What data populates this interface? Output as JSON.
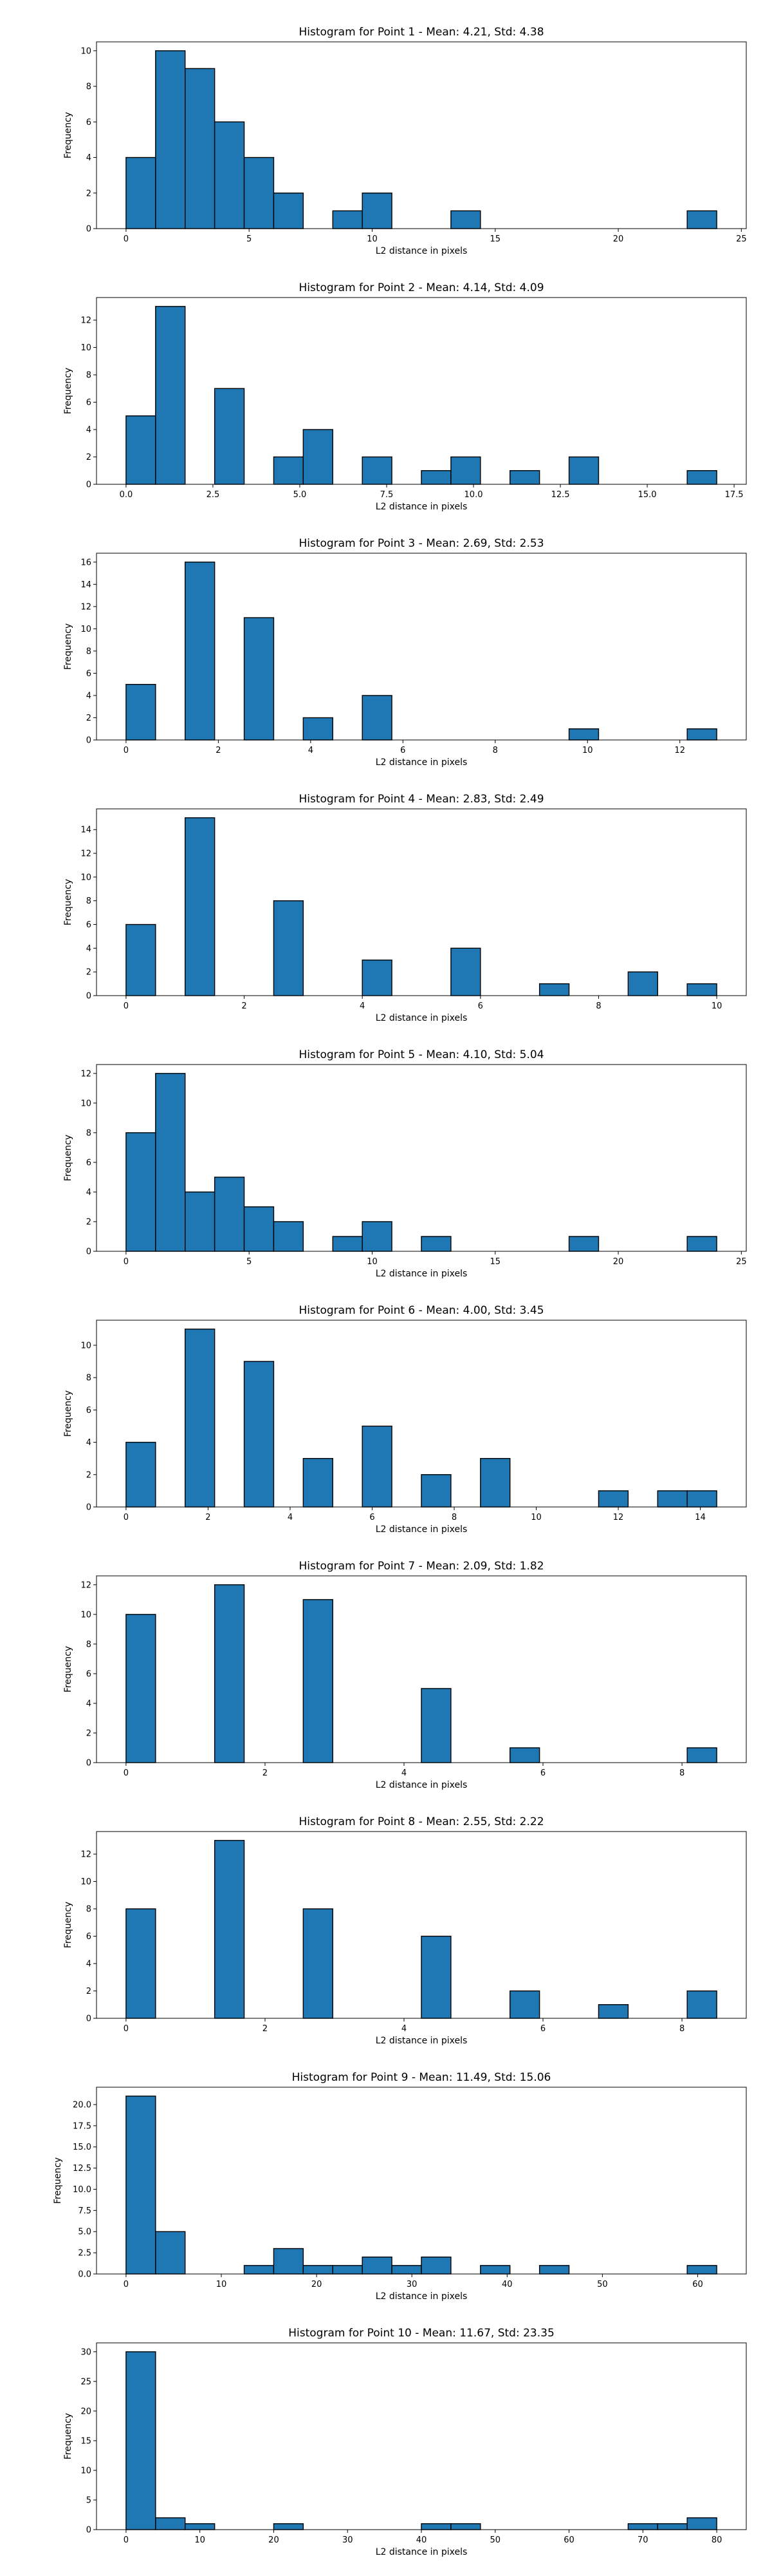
{
  "chart_data": [
    {
      "type": "bar",
      "title": "Histogram for Point 1 - Mean: 4.21, Std: 4.38",
      "xlabel": "L2 distance in pixels",
      "ylabel": "Frequency",
      "xlim": [
        -1.2,
        25.2
      ],
      "ylim": [
        0,
        10.5
      ],
      "xticks": [
        0,
        5,
        10,
        15,
        20,
        25
      ],
      "xtick_labels": [
        "0",
        "5",
        "10",
        "15",
        "20",
        "25"
      ],
      "yticks": [
        0,
        2,
        4,
        6,
        8,
        10
      ],
      "ytick_labels": [
        "0",
        "2",
        "4",
        "6",
        "8",
        "10"
      ],
      "bin_edges": [
        0,
        1.2,
        2.4,
        3.6,
        4.8,
        6,
        7.2,
        8.4,
        9.6,
        10.8,
        12,
        13.2,
        14.4,
        15.6,
        16.8,
        18,
        19.2,
        20.4,
        21.6,
        22.8,
        24
      ],
      "values": [
        4,
        10,
        9,
        6,
        4,
        2,
        0,
        1,
        2,
        0,
        0,
        1,
        0,
        0,
        0,
        0,
        0,
        0,
        0,
        1
      ]
    },
    {
      "type": "bar",
      "title": "Histogram for Point 2 - Mean: 4.14, Std: 4.09",
      "xlabel": "L2 distance in pixels",
      "ylabel": "Frequency",
      "xlim": [
        -0.85,
        17.85
      ],
      "ylim": [
        0,
        13.65
      ],
      "xticks": [
        0,
        2.5,
        5,
        7.5,
        10,
        12.5,
        15,
        17.5
      ],
      "xtick_labels": [
        "0.0",
        "2.5",
        "5.0",
        "7.5",
        "10.0",
        "12.5",
        "15.0",
        "17.5"
      ],
      "yticks": [
        0,
        2,
        4,
        6,
        8,
        10,
        12
      ],
      "ytick_labels": [
        "0",
        "2",
        "4",
        "6",
        "8",
        "10",
        "12"
      ],
      "bin_edges": [
        0,
        0.85,
        1.7,
        2.55,
        3.4,
        4.25,
        5.1,
        5.95,
        6.8,
        7.65,
        8.5,
        9.35,
        10.2,
        11.05,
        11.9,
        12.75,
        13.6,
        14.45,
        15.3,
        16.15,
        17
      ],
      "values": [
        5,
        13,
        0,
        7,
        0,
        2,
        4,
        0,
        2,
        0,
        1,
        2,
        0,
        1,
        0,
        2,
        0,
        0,
        0,
        1
      ]
    },
    {
      "type": "bar",
      "title": "Histogram for Point 3 - Mean: 2.69, Std: 2.53",
      "xlabel": "L2 distance in pixels",
      "ylabel": "Frequency",
      "xlim": [
        -0.64,
        13.44
      ],
      "ylim": [
        0,
        16.8
      ],
      "xticks": [
        0,
        2,
        4,
        6,
        8,
        10,
        12
      ],
      "xtick_labels": [
        "0",
        "2",
        "4",
        "6",
        "8",
        "10",
        "12"
      ],
      "yticks": [
        0,
        2,
        4,
        6,
        8,
        10,
        12,
        14,
        16
      ],
      "ytick_labels": [
        "0",
        "2",
        "4",
        "6",
        "8",
        "10",
        "12",
        "14",
        "16"
      ],
      "bin_edges": [
        0,
        0.64,
        1.28,
        1.92,
        2.56,
        3.2,
        3.84,
        4.48,
        5.12,
        5.76,
        6.4,
        7.04,
        7.68,
        8.32,
        8.96,
        9.6,
        10.24,
        10.88,
        11.52,
        12.16,
        12.8
      ],
      "values": [
        5,
        0,
        16,
        0,
        11,
        0,
        2,
        0,
        4,
        0,
        0,
        0,
        0,
        0,
        0,
        1,
        0,
        0,
        0,
        1
      ]
    },
    {
      "type": "bar",
      "title": "Histogram for Point 4 - Mean: 2.83, Std: 2.49",
      "xlabel": "L2 distance in pixels",
      "ylabel": "Frequency",
      "xlim": [
        -0.5,
        10.5
      ],
      "ylim": [
        0,
        15.75
      ],
      "xticks": [
        0,
        2,
        4,
        6,
        8,
        10
      ],
      "xtick_labels": [
        "0",
        "2",
        "4",
        "6",
        "8",
        "10"
      ],
      "yticks": [
        0,
        2,
        4,
        6,
        8,
        10,
        12,
        14
      ],
      "ytick_labels": [
        "0",
        "2",
        "4",
        "6",
        "8",
        "10",
        "12",
        "14"
      ],
      "bin_edges": [
        0,
        0.5,
        1,
        1.5,
        2,
        2.5,
        3,
        3.5,
        4,
        4.5,
        5,
        5.5,
        6,
        6.5,
        7,
        7.5,
        8,
        8.5,
        9,
        9.5,
        10
      ],
      "values": [
        6,
        0,
        15,
        0,
        0,
        8,
        0,
        0,
        3,
        0,
        0,
        4,
        0,
        0,
        1,
        0,
        0,
        2,
        0,
        1
      ]
    },
    {
      "type": "bar",
      "title": "Histogram for Point 5 - Mean: 4.10, Std: 5.04",
      "xlabel": "L2 distance in pixels",
      "ylabel": "Frequency",
      "xlim": [
        -1.2,
        25.2
      ],
      "ylim": [
        0,
        12.6
      ],
      "xticks": [
        0,
        5,
        10,
        15,
        20,
        25
      ],
      "xtick_labels": [
        "0",
        "5",
        "10",
        "15",
        "20",
        "25"
      ],
      "yticks": [
        0,
        2,
        4,
        6,
        8,
        10,
        12
      ],
      "ytick_labels": [
        "0",
        "2",
        "4",
        "6",
        "8",
        "10",
        "12"
      ],
      "bin_edges": [
        0,
        1.2,
        2.4,
        3.6,
        4.8,
        6,
        7.2,
        8.4,
        9.6,
        10.8,
        12,
        13.2,
        14.4,
        15.6,
        16.8,
        18,
        19.2,
        20.4,
        21.6,
        22.8,
        24
      ],
      "values": [
        8,
        12,
        4,
        5,
        3,
        2,
        0,
        1,
        2,
        0,
        1,
        0,
        0,
        0,
        0,
        1,
        0,
        0,
        0,
        1
      ]
    },
    {
      "type": "bar",
      "title": "Histogram for Point 6 - Mean: 4.00, Std: 3.45",
      "xlabel": "L2 distance in pixels",
      "ylabel": "Frequency",
      "xlim": [
        -0.72,
        15.12
      ],
      "ylim": [
        0,
        11.55
      ],
      "xticks": [
        0,
        2,
        4,
        6,
        8,
        10,
        12,
        14
      ],
      "xtick_labels": [
        "0",
        "2",
        "4",
        "6",
        "8",
        "10",
        "12",
        "14"
      ],
      "yticks": [
        0,
        2,
        4,
        6,
        8,
        10
      ],
      "ytick_labels": [
        "0",
        "2",
        "4",
        "6",
        "8",
        "10"
      ],
      "bin_edges": [
        0,
        0.72,
        1.44,
        2.16,
        2.88,
        3.6,
        4.32,
        5.04,
        5.76,
        6.48,
        7.2,
        7.92,
        8.64,
        9.36,
        10.08,
        10.8,
        11.52,
        12.24,
        12.96,
        13.68,
        14.4
      ],
      "values": [
        4,
        0,
        11,
        0,
        9,
        0,
        3,
        0,
        5,
        0,
        2,
        0,
        3,
        0,
        0,
        0,
        1,
        0,
        1,
        1
      ]
    },
    {
      "type": "bar",
      "title": "Histogram for Point 7 - Mean: 2.09, Std: 1.82",
      "xlabel": "L2 distance in pixels",
      "ylabel": "Frequency",
      "xlim": [
        -0.425,
        8.925
      ],
      "ylim": [
        0,
        12.6
      ],
      "xticks": [
        0,
        2,
        4,
        6,
        8
      ],
      "xtick_labels": [
        "0",
        "2",
        "4",
        "6",
        "8"
      ],
      "yticks": [
        0,
        2,
        4,
        6,
        8,
        10,
        12
      ],
      "ytick_labels": [
        "0",
        "2",
        "4",
        "6",
        "8",
        "10",
        "12"
      ],
      "bin_edges": [
        0,
        0.425,
        0.85,
        1.275,
        1.7,
        2.125,
        2.55,
        2.975,
        3.4,
        3.825,
        4.25,
        4.675,
        5.1,
        5.525,
        5.95,
        6.375,
        6.8,
        7.225,
        7.65,
        8.075,
        8.5
      ],
      "values": [
        10,
        0,
        0,
        12,
        0,
        0,
        11,
        0,
        0,
        0,
        5,
        0,
        0,
        1,
        0,
        0,
        0,
        0,
        0,
        1
      ]
    },
    {
      "type": "bar",
      "title": "Histogram for Point 8 - Mean: 2.55, Std: 2.22",
      "xlabel": "L2 distance in pixels",
      "ylabel": "Frequency",
      "xlim": [
        -0.425,
        8.925
      ],
      "ylim": [
        0,
        13.65
      ],
      "xticks": [
        0,
        2,
        4,
        6,
        8
      ],
      "xtick_labels": [
        "0",
        "2",
        "4",
        "6",
        "8"
      ],
      "yticks": [
        0,
        2,
        4,
        6,
        8,
        10,
        12
      ],
      "ytick_labels": [
        "0",
        "2",
        "4",
        "6",
        "8",
        "10",
        "12"
      ],
      "bin_edges": [
        0,
        0.425,
        0.85,
        1.275,
        1.7,
        2.125,
        2.55,
        2.975,
        3.4,
        3.825,
        4.25,
        4.675,
        5.1,
        5.525,
        5.95,
        6.375,
        6.8,
        7.225,
        7.65,
        8.075,
        8.5
      ],
      "values": [
        8,
        0,
        0,
        13,
        0,
        0,
        8,
        0,
        0,
        0,
        6,
        0,
        0,
        2,
        0,
        0,
        1,
        0,
        0,
        2
      ]
    },
    {
      "type": "bar",
      "title": "Histogram for Point 9 - Mean: 11.49, Std: 15.06",
      "xlabel": "L2 distance in pixels",
      "ylabel": "Frequency",
      "xlim": [
        -3.1,
        65.1
      ],
      "ylim": [
        0,
        22.05
      ],
      "xticks": [
        0,
        10,
        20,
        30,
        40,
        50,
        60
      ],
      "xtick_labels": [
        "0",
        "10",
        "20",
        "30",
        "40",
        "50",
        "60"
      ],
      "yticks": [
        0,
        2.5,
        5,
        7.5,
        10,
        12.5,
        15,
        17.5,
        20
      ],
      "ytick_labels": [
        "0.0",
        "2.5",
        "5.0",
        "7.5",
        "10.0",
        "12.5",
        "15.0",
        "17.5",
        "20.0"
      ],
      "bin_edges": [
        0,
        3.1,
        6.2,
        9.3,
        12.4,
        15.5,
        18.6,
        21.7,
        24.8,
        27.9,
        31,
        34.1,
        37.2,
        40.3,
        43.4,
        46.5,
        49.6,
        52.7,
        55.8,
        58.9,
        62
      ],
      "values": [
        21,
        5,
        0,
        0,
        1,
        3,
        1,
        1,
        2,
        1,
        2,
        0,
        1,
        0,
        1,
        0,
        0,
        0,
        0,
        1
      ]
    },
    {
      "type": "bar",
      "title": "Histogram for Point 10 - Mean: 11.67, Std: 23.35",
      "xlabel": "L2 distance in pixels",
      "ylabel": "Frequency",
      "xlim": [
        -4,
        84
      ],
      "ylim": [
        0,
        31.5
      ],
      "xticks": [
        0,
        10,
        20,
        30,
        40,
        50,
        60,
        70,
        80
      ],
      "xtick_labels": [
        "0",
        "10",
        "20",
        "30",
        "40",
        "50",
        "60",
        "70",
        "80"
      ],
      "yticks": [
        0,
        5,
        10,
        15,
        20,
        25,
        30
      ],
      "ytick_labels": [
        "0",
        "5",
        "10",
        "15",
        "20",
        "25",
        "30"
      ],
      "bin_edges": [
        0,
        4,
        8,
        12,
        16,
        20,
        24,
        28,
        32,
        36,
        40,
        44,
        48,
        52,
        56,
        60,
        64,
        68,
        72,
        76,
        80
      ],
      "values": [
        30,
        2,
        1,
        0,
        0,
        1,
        0,
        0,
        0,
        0,
        1,
        1,
        0,
        0,
        0,
        0,
        0,
        1,
        1,
        2
      ]
    }
  ]
}
